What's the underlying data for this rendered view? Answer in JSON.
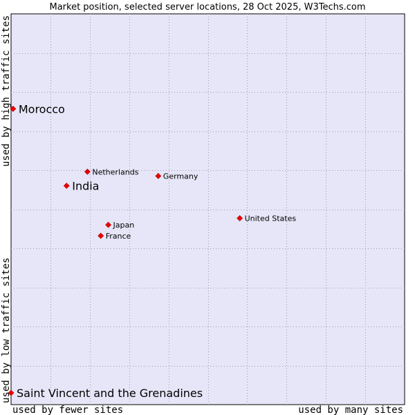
{
  "chart_data": {
    "type": "scatter",
    "title": "Market position, selected server locations, 28 Oct 2025, W3Techs.com",
    "xlabel_left": "used by fewer sites",
    "xlabel_right": "used by many sites",
    "ylabel_bottom": "used by low traffic sites",
    "ylabel_top": "used by high traffic sites",
    "grid": true,
    "x_range": [
      0,
      10
    ],
    "y_range": [
      0,
      10
    ],
    "colors": {
      "plot_background": "#e6e6f8",
      "marker": "#ee0000",
      "grid": "#9999aa",
      "frame": "#000000"
    },
    "points": [
      {
        "name": "Morocco",
        "x": 0.05,
        "y": 7.57,
        "highlight": true
      },
      {
        "name": "India",
        "x": 1.41,
        "y": 5.6,
        "highlight": true
      },
      {
        "name": "Saint Vincent and the Grenadines",
        "x": 0.0,
        "y": 0.3,
        "highlight": true
      },
      {
        "name": "Netherlands",
        "x": 1.94,
        "y": 5.96,
        "highlight": false
      },
      {
        "name": "Germany",
        "x": 3.74,
        "y": 5.85,
        "highlight": false
      },
      {
        "name": "United States",
        "x": 5.81,
        "y": 4.77,
        "highlight": false
      },
      {
        "name": "Japan",
        "x": 2.47,
        "y": 4.6,
        "highlight": false
      },
      {
        "name": "France",
        "x": 2.28,
        "y": 4.32,
        "highlight": false
      }
    ]
  }
}
